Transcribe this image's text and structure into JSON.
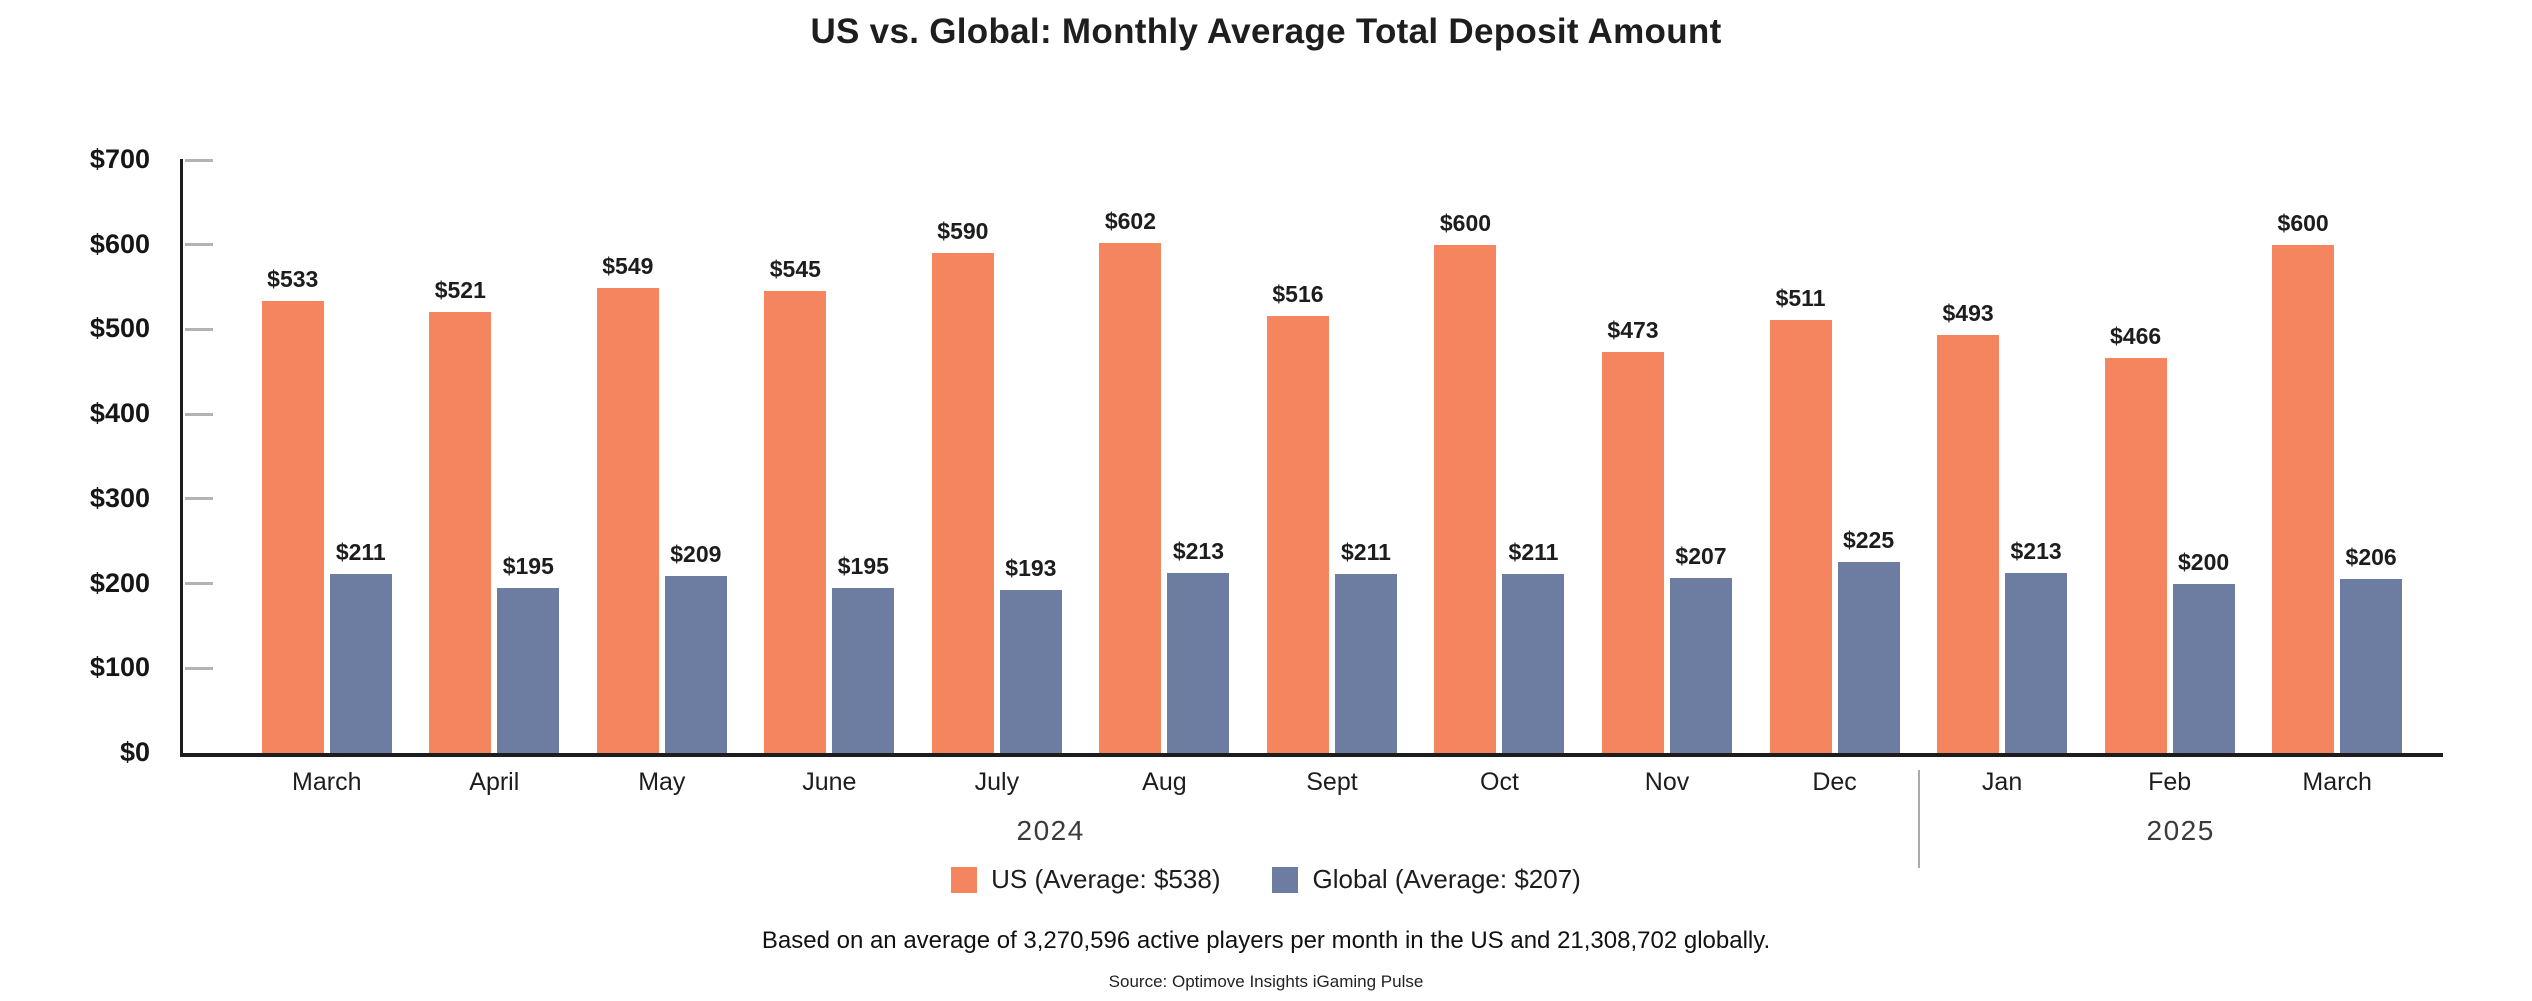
{
  "title": "US vs. Global: Monthly Average Total Deposit Amount",
  "chart_data": {
    "type": "bar",
    "categories": [
      "March",
      "April",
      "May",
      "June",
      "July",
      "Aug",
      "Sept",
      "Oct",
      "Nov",
      "Dec",
      "Jan",
      "Feb",
      "March"
    ],
    "series": [
      {
        "name": "US",
        "legend_label": "US (Average: $538)",
        "average": 538,
        "color": "#F5855F",
        "values": [
          533,
          521,
          549,
          545,
          590,
          602,
          516,
          600,
          473,
          511,
          493,
          466,
          600
        ]
      },
      {
        "name": "Global",
        "legend_label": "Global (Average: $207)",
        "average": 207,
        "color": "#6D7CA1",
        "values": [
          211,
          195,
          209,
          195,
          193,
          213,
          211,
          211,
          207,
          225,
          213,
          200,
          206
        ]
      }
    ],
    "value_prefix": "$",
    "y_ticks": [
      0,
      100,
      200,
      300,
      400,
      500,
      600,
      700
    ],
    "ylim": [
      0,
      700
    ],
    "x_sections": [
      {
        "label": "2024",
        "span": 10
      },
      {
        "label": "2025",
        "span": 3
      }
    ],
    "legend_position": "bottom",
    "grid": false
  },
  "footnote": "Based on an average of 3,270,596 active players per month in the US and 21,308,702 globally.",
  "source": "Source: Optimove Insights iGaming Pulse",
  "colors": {
    "axis": "#1D1D1D",
    "tick": "#B3B3B3",
    "divider": "#ABABAB",
    "text": "#1D1D1D",
    "background": "#FFFFFF"
  }
}
